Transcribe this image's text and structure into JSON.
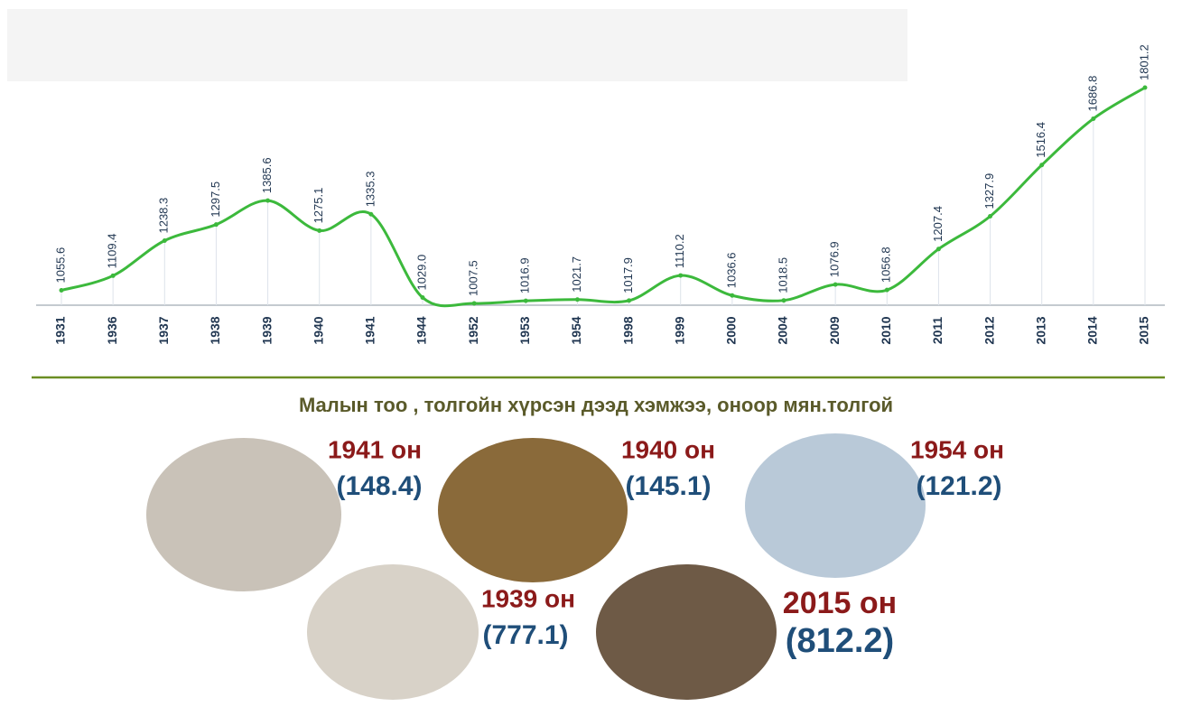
{
  "chart_data": {
    "type": "line",
    "categories": [
      "1931",
      "1936",
      "1937",
      "1938",
      "1939",
      "1940",
      "1941",
      "1944",
      "1952",
      "1953",
      "1954",
      "1998",
      "1999",
      "2000",
      "2004",
      "2009",
      "2010",
      "2011",
      "2012",
      "2013",
      "2014",
      "2015"
    ],
    "values": [
      1055.6,
      1109.4,
      1238.3,
      1297.5,
      1385.6,
      1275.1,
      1335.3,
      1029.0,
      1007.5,
      1016.9,
      1021.7,
      1017.9,
      1110.2,
      1036.6,
      1018.5,
      1076.9,
      1056.8,
      1207.4,
      1327.9,
      1516.4,
      1686.8,
      1801.2
    ],
    "value_labels": [
      "1055.6",
      "1109.4",
      "1238.3",
      "1297.5",
      "1385.6",
      "1275.1",
      "1335.3",
      "1029.0",
      "1007.5",
      "1016.9",
      "1021.7",
      "1017.9",
      "1110.2",
      "1036.6",
      "1018.5",
      "1076.9",
      "1056.8",
      "1207.4",
      "1327.9",
      "1516.4",
      "1686.8",
      "1801.2"
    ],
    "color": "#3cb93c"
  },
  "caption": "Малын тоо , толгойн хүрсэн дээд хэмжээ, оноор мян.толгой",
  "highlights": [
    {
      "year": "1941 он",
      "value": "(148.4)"
    },
    {
      "year": "1940 он",
      "value": "(145.1)"
    },
    {
      "year": "1954 он",
      "value": "(121.2)"
    },
    {
      "year": "1939 он",
      "value": "(777.1)"
    },
    {
      "year": "2015 он",
      "value": "(812.2)"
    }
  ]
}
